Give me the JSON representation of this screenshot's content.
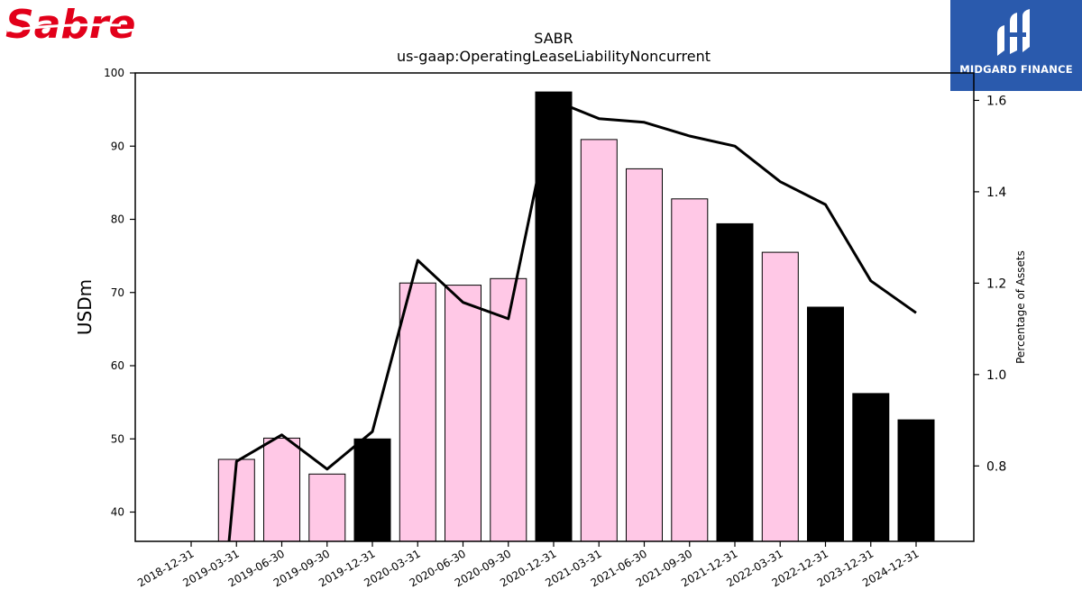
{
  "logos": {
    "left_brand": "Sabre",
    "right_brand": "MIDGARD FINANCE"
  },
  "chart_data": {
    "type": "bar",
    "title": "SABR",
    "subtitle": "us-gaap:OperatingLeaseLiabilityNoncurrent",
    "ylabel": "USDm",
    "y2label": "Percentage of Assets",
    "ylim": [
      36,
      100
    ],
    "y2lim": [
      0.635,
      1.66
    ],
    "yticks": [
      40,
      50,
      60,
      70,
      80,
      90,
      100
    ],
    "y2ticks": [
      0.8,
      1.0,
      1.2,
      1.4,
      1.6
    ],
    "categories": [
      "2018-12-31",
      "2019-03-31",
      "2019-06-30",
      "2019-09-30",
      "2019-12-31",
      "2020-03-31",
      "2020-06-30",
      "2020-09-30",
      "2020-12-31",
      "2021-03-31",
      "2021-06-30",
      "2021-09-30",
      "2021-12-31",
      "2022-03-31",
      "2022-12-31",
      "2023-12-31",
      "2024-12-31"
    ],
    "series": [
      {
        "kind": "bar",
        "values": [
          null,
          47.2,
          50.1,
          45.2,
          50.0,
          71.3,
          71.0,
          71.9,
          97.4,
          90.9,
          86.9,
          82.8,
          79.4,
          75.5,
          68.0,
          56.2,
          52.6
        ],
        "annual": [
          false,
          false,
          false,
          false,
          true,
          false,
          false,
          false,
          true,
          false,
          false,
          false,
          true,
          false,
          true,
          true,
          true
        ]
      },
      {
        "kind": "line",
        "axis": "secondary",
        "values": [
          null,
          0.81,
          0.868,
          0.793,
          0.875,
          1.25,
          1.158,
          1.122,
          1.6,
          1.56,
          1.552,
          1.522,
          1.5,
          1.422,
          1.372,
          1.205,
          1.135
        ]
      }
    ],
    "colors": {
      "quarter_bar": "#ffc8e6",
      "annual_bar": "#000000",
      "line": "#000000"
    }
  }
}
